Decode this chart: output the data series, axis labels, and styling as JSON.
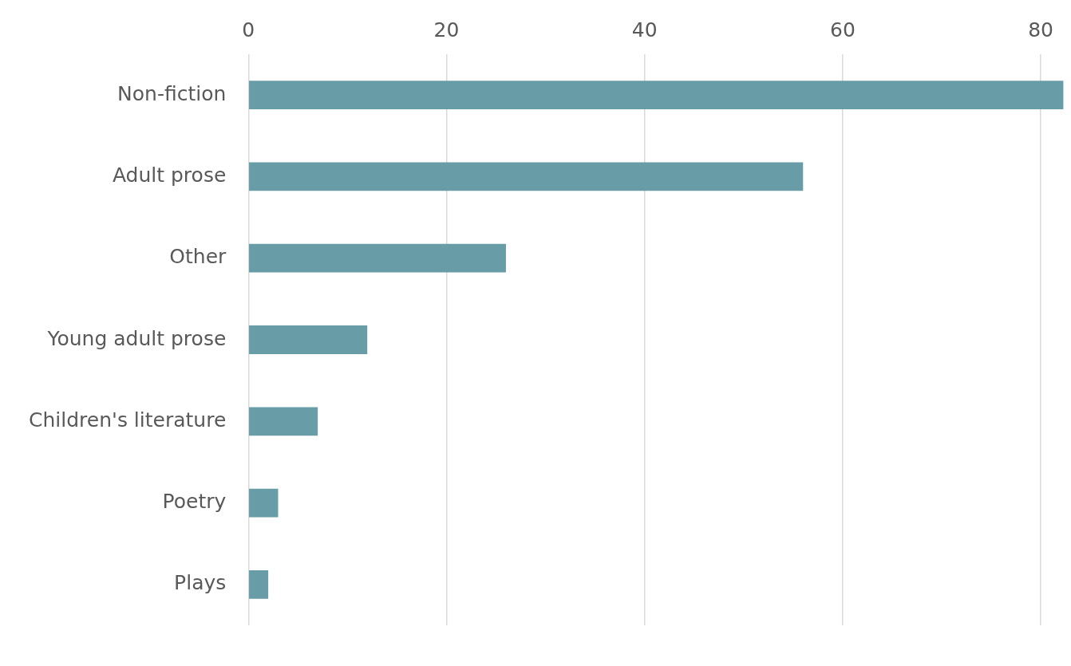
{
  "chart_data": {
    "type": "bar",
    "orientation": "horizontal",
    "categories": [
      "Non-fiction",
      "Adult prose",
      "Other",
      "Young adult prose",
      "Children's literature",
      "Poetry",
      "Plays"
    ],
    "values": [
      82.3,
      56,
      26,
      12,
      7,
      3,
      2
    ],
    "color": "#689da8",
    "xlim": [
      0,
      82.3
    ],
    "xticks": [
      0,
      20,
      40,
      60,
      80
    ],
    "grid": "x",
    "legend": false
  }
}
